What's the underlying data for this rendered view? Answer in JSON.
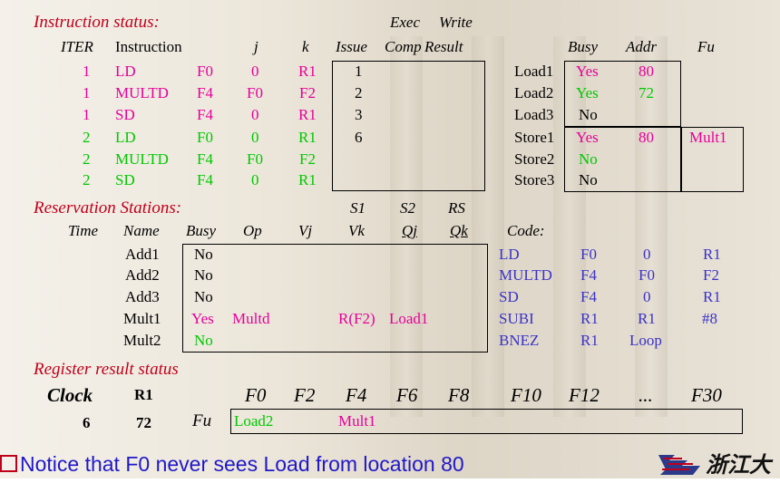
{
  "instruction_status": {
    "title": "Instruction status:",
    "header_exec": "Exec",
    "header_write": "Write",
    "headers": [
      "ITER",
      "Instruction",
      "j",
      "k",
      "Issue",
      "Comp",
      "Result"
    ],
    "rows": [
      {
        "iter": "1",
        "op": "LD",
        "dest": "F0",
        "j": "0",
        "k": "R1",
        "issue": "1"
      },
      {
        "iter": "1",
        "op": "MULTD",
        "dest": "F4",
        "j": "F0",
        "k": "F2",
        "issue": "2"
      },
      {
        "iter": "1",
        "op": "SD",
        "dest": "F4",
        "j": "0",
        "k": "R1",
        "issue": "3"
      },
      {
        "iter": "2",
        "op": "LD",
        "dest": "F0",
        "j": "0",
        "k": "R1",
        "issue": "6"
      },
      {
        "iter": "2",
        "op": "MULTD",
        "dest": "F4",
        "j": "F0",
        "k": "F2",
        "issue": ""
      },
      {
        "iter": "2",
        "op": "SD",
        "dest": "F4",
        "j": "0",
        "k": "R1",
        "issue": ""
      }
    ]
  },
  "buffers": {
    "headers": [
      "Busy",
      "Addr",
      "Fu"
    ],
    "rows": [
      {
        "name": "Load1",
        "busy": "Yes",
        "addr": "80",
        "fu": ""
      },
      {
        "name": "Load2",
        "busy": "Yes",
        "addr": "72",
        "fu": ""
      },
      {
        "name": "Load3",
        "busy": "No",
        "addr": "",
        "fu": ""
      },
      {
        "name": "Store1",
        "busy": "Yes",
        "addr": "80",
        "fu": "Mult1"
      },
      {
        "name": "Store2",
        "busy": "No",
        "addr": "",
        "fu": ""
      },
      {
        "name": "Store3",
        "busy": "No",
        "addr": "",
        "fu": ""
      }
    ]
  },
  "reservation_stations": {
    "title": "Reservation Stations:",
    "top_headers": [
      "S1",
      "S2",
      "RS"
    ],
    "headers": [
      "Time",
      "Name",
      "Busy",
      "Op",
      "Vj",
      "Vk",
      "Qj",
      "Qk"
    ],
    "rows": [
      {
        "name": "Add1",
        "busy": "No",
        "op": "",
        "vj": "",
        "vk": "",
        "qj": "",
        "qk": ""
      },
      {
        "name": "Add2",
        "busy": "No",
        "op": "",
        "vj": "",
        "vk": "",
        "qj": "",
        "qk": ""
      },
      {
        "name": "Add3",
        "busy": "No",
        "op": "",
        "vj": "",
        "vk": "",
        "qj": "",
        "qk": ""
      },
      {
        "name": "Mult1",
        "busy": "Yes",
        "op": "Multd",
        "vj": "",
        "vk": "R(F2)",
        "qj": "Load1",
        "qk": ""
      },
      {
        "name": "Mult2",
        "busy": "No",
        "op": "",
        "vj": "",
        "vk": "",
        "qj": "",
        "qk": ""
      }
    ]
  },
  "code": {
    "title": "Code:",
    "rows": [
      [
        "LD",
        "F0",
        "0",
        "R1"
      ],
      [
        "MULTD",
        "F4",
        "F0",
        "F2"
      ],
      [
        "SD",
        "F4",
        "0",
        "R1"
      ],
      [
        "SUBI",
        "R1",
        "R1",
        "#8"
      ],
      [
        "BNEZ",
        "R1",
        "Loop",
        ""
      ]
    ]
  },
  "register_status": {
    "title": "Register result status",
    "clock_label": "Clock",
    "r1_label": "R1",
    "clock_value": "6",
    "r1_value": "72",
    "fu_label": "Fu",
    "registers": [
      "F0",
      "F2",
      "F4",
      "F6",
      "F8",
      "F10",
      "F12",
      "...",
      "F30"
    ],
    "fu_values": [
      "Load2",
      "",
      "Mult1",
      "",
      "",
      "",
      "",
      "",
      ""
    ]
  },
  "note": "Notice that F0 never sees Load from location 80",
  "logo_text": "浙江大",
  "colors": {
    "title": "#c0001b",
    "iter1": "#e6009a",
    "iter2": "#00c800",
    "code": "#3a32c8",
    "note": "#2018c8"
  }
}
